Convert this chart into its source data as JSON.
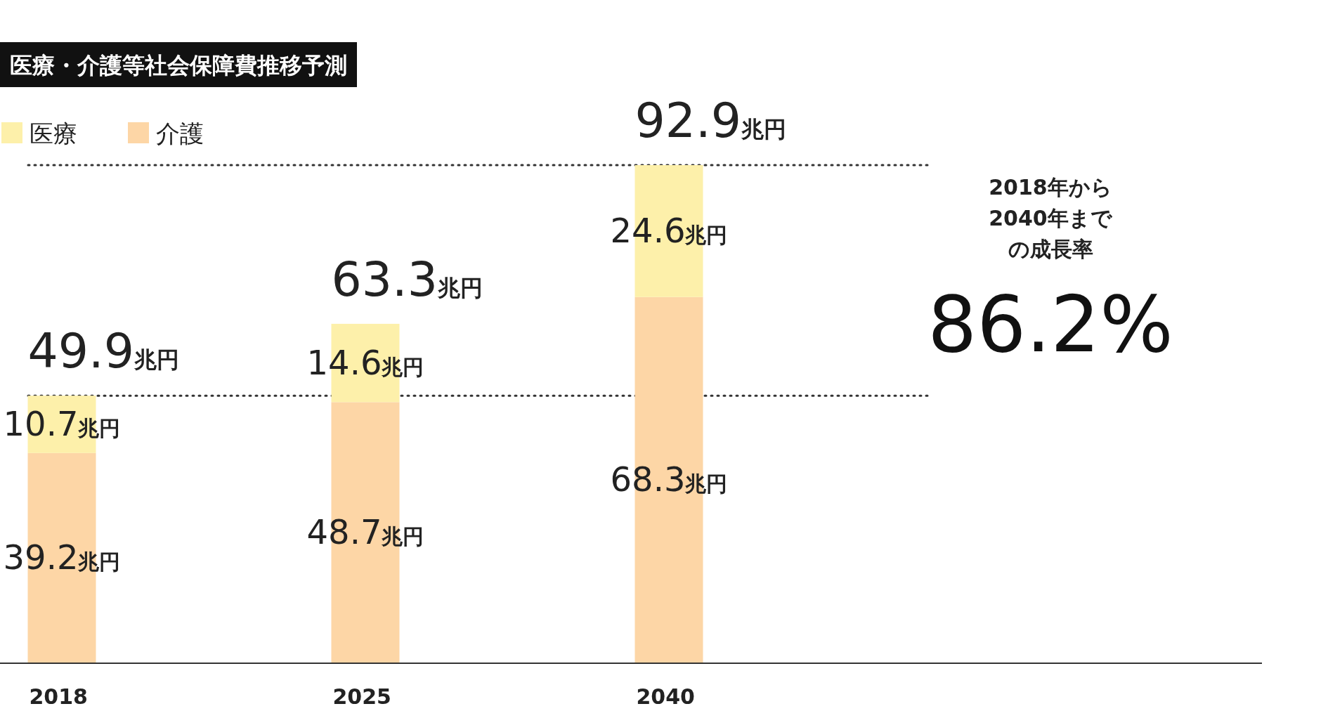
{
  "chart_data": {
    "type": "bar",
    "title": "医療・介護等社会保障費推移予測",
    "categories": [
      "2018",
      "2025",
      "2040"
    ],
    "stacked": true,
    "series": [
      {
        "name": "介護",
        "color": "#fdd6a6",
        "values": [
          39.2,
          48.7,
          68.3
        ],
        "value_labels": [
          "39.2兆円",
          "48.7兆円",
          "68.3兆円"
        ]
      },
      {
        "name": "医療",
        "color": "#fdf0aa",
        "values": [
          10.7,
          14.6,
          24.6
        ],
        "value_labels": [
          "10.7兆円",
          "14.6兆円",
          "24.6兆円"
        ]
      }
    ],
    "totals": [
      "49.9兆円",
      "63.3兆円",
      "92.9兆円"
    ],
    "ref_lines": [
      {
        "axis": "y",
        "value": 49.9,
        "line_style": "dotted",
        "color": "#333333"
      },
      {
        "axis": "y",
        "value": 92.9,
        "line_style": "dotted",
        "color": "#333333"
      }
    ],
    "legend": "top left",
    "grid": false,
    "annotations": [
      "2018年から2040年までの成長率",
      "86.2%"
    ]
  }
}
